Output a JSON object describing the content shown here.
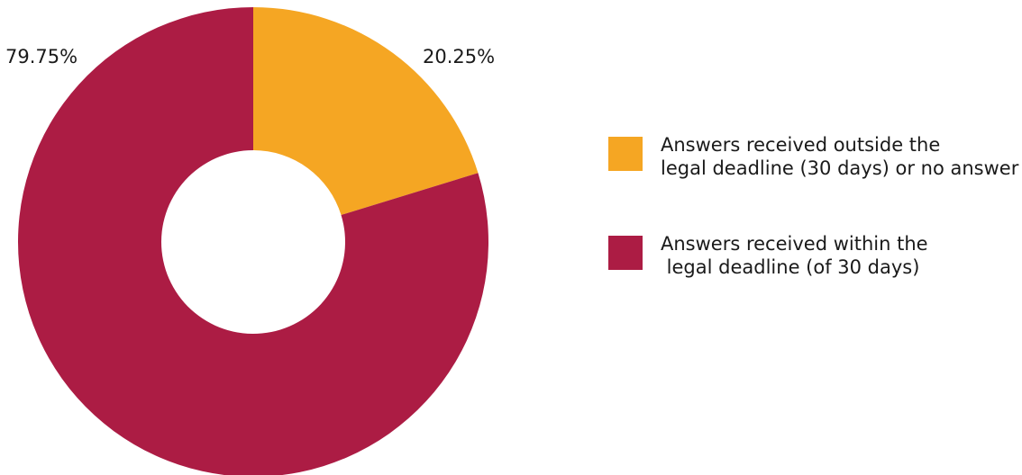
{
  "chart_data": {
    "type": "pie",
    "variant": "donut",
    "slices": [
      {
        "label_lines": [
          "Answers received outside the",
          "legal deadline (30 days) or no answer"
        ],
        "value": 20.25,
        "value_label": "20.25%",
        "color": "#F5A623"
      },
      {
        "label_lines": [
          "Answers received within the",
          " legal deadline (of 30 days)"
        ],
        "value": 79.75,
        "value_label": "79.75%",
        "color": "#AC1C44"
      }
    ],
    "legend_position": "right"
  }
}
